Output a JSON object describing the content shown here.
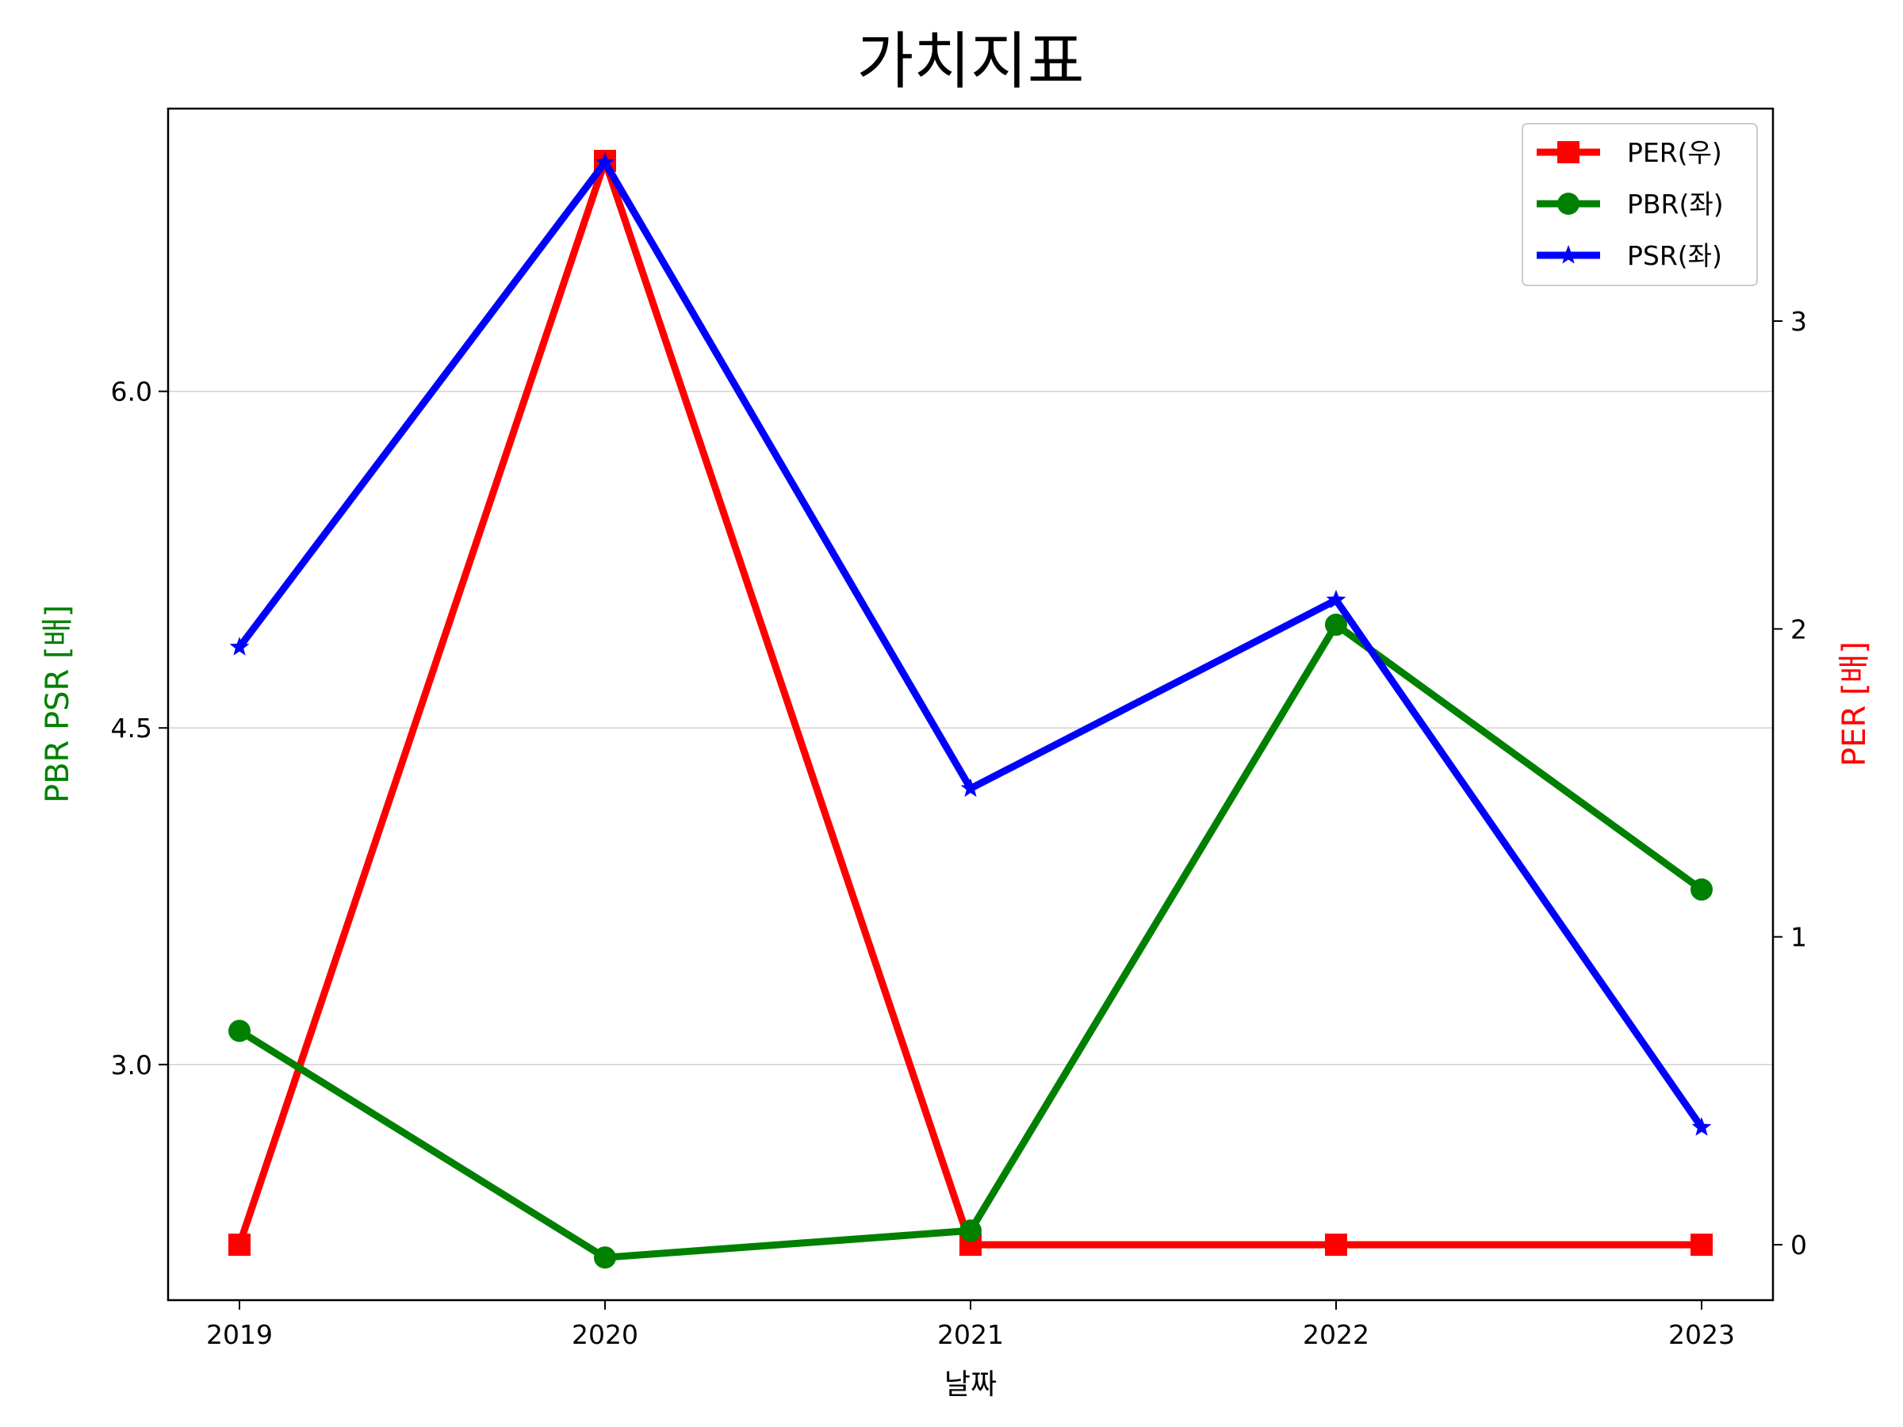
{
  "chart_data": {
    "type": "line",
    "title": "가치지표",
    "xlabel": "날짜",
    "ylabel_left": "PBR PSR [배]",
    "ylabel_right": "PER [배]",
    "ylabel_left_color": "#008000",
    "ylabel_right_color": "#ff0000",
    "categories": [
      "2019",
      "2020",
      "2021",
      "2022",
      "2023"
    ],
    "y_left": {
      "min": 1.95,
      "max": 7.26,
      "ticks": [
        3.0,
        4.5,
        6.0
      ],
      "tick_labels": [
        "3.0",
        "4.5",
        "6.0"
      ]
    },
    "y_right": {
      "min": -0.18,
      "max": 3.69,
      "ticks": [
        0,
        1,
        2,
        3
      ],
      "tick_labels": [
        "0",
        "1",
        "2",
        "3"
      ]
    },
    "grid": "horizontal",
    "legend_position": "top-right",
    "series": [
      {
        "name": "PER(우)",
        "axis": "right",
        "color": "#ff0000",
        "marker": "square",
        "values": [
          0.0,
          3.52,
          0.0,
          0.0,
          0.0
        ]
      },
      {
        "name": "PBR(좌)",
        "axis": "left",
        "color": "#008000",
        "marker": "circle",
        "values": [
          3.15,
          2.14,
          2.26,
          4.96,
          3.78
        ]
      },
      {
        "name": "PSR(좌)",
        "axis": "left",
        "color": "#0000ff",
        "marker": "star",
        "values": [
          4.86,
          7.02,
          4.23,
          5.07,
          2.72
        ]
      }
    ]
  }
}
